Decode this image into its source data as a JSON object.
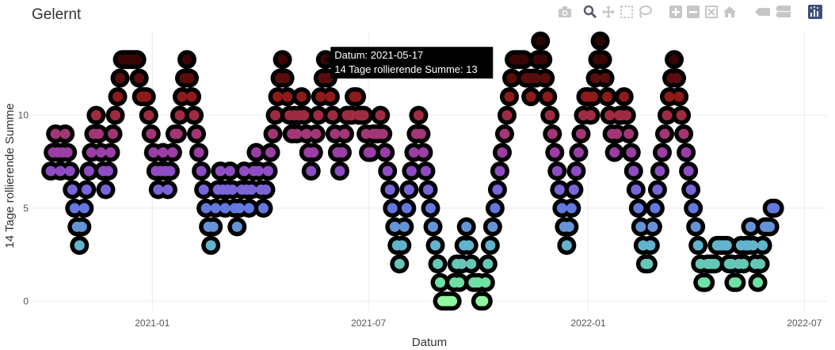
{
  "chart_data": {
    "type": "scatter",
    "title": "Gelernt",
    "xlabel": "Datum",
    "ylabel": "14 Tage rollierende Summe",
    "xlim": [
      "2020-09-22",
      "2022-07-20"
    ],
    "ylim": [
      -0.5,
      14.5
    ],
    "x_ticks": [
      {
        "label": "2021-01",
        "date": "2021-01-01"
      },
      {
        "label": "2021-07",
        "date": "2021-07-01"
      },
      {
        "label": "2022-01",
        "date": "2022-01-01"
      },
      {
        "label": "2022-07",
        "date": "2022-07-01"
      }
    ],
    "y_ticks": [
      0,
      5,
      10
    ],
    "grid": true,
    "start_date": "2020-10-08",
    "y_values": [
      7,
      8,
      9,
      8,
      7,
      8,
      9,
      8,
      7,
      6,
      5,
      4,
      3,
      4,
      5,
      6,
      7,
      8,
      9,
      10,
      9,
      8,
      7,
      6,
      7,
      8,
      9,
      10,
      11,
      12,
      13,
      13,
      13,
      13,
      13,
      13,
      13,
      12,
      11,
      11,
      11,
      10,
      9,
      8,
      7,
      6,
      7,
      8,
      7,
      6,
      7,
      8,
      9,
      9,
      10,
      11,
      12,
      13,
      12,
      11,
      10,
      9,
      8,
      7,
      6,
      5,
      4,
      3,
      4,
      5,
      6,
      7,
      6,
      5,
      6,
      7,
      6,
      5,
      4,
      5,
      6,
      7,
      6,
      5,
      6,
      7,
      8,
      7,
      6,
      5,
      6,
      7,
      8,
      9,
      10,
      11,
      12,
      13,
      12,
      11,
      10,
      9,
      10,
      9,
      10,
      11,
      10,
      9,
      8,
      7,
      8,
      9,
      10,
      11,
      12,
      13,
      12,
      11,
      10,
      9,
      8,
      7,
      8,
      9,
      10,
      10,
      10,
      11,
      11,
      10,
      10,
      10,
      9,
      8,
      8,
      9,
      9,
      9,
      10,
      9,
      8,
      7,
      6,
      5,
      4,
      3,
      2,
      3,
      4,
      5,
      6,
      7,
      8,
      9,
      10,
      9,
      8,
      7,
      6,
      5,
      4,
      3,
      2,
      1,
      0,
      0,
      0,
      0,
      0,
      1,
      2,
      1,
      2,
      3,
      4,
      3,
      2,
      1,
      1,
      1,
      0,
      0,
      1,
      2,
      3,
      4,
      5,
      6,
      7,
      8,
      9,
      10,
      11,
      12,
      13,
      13,
      13,
      13,
      13,
      12,
      12,
      11,
      12,
      12,
      13,
      14,
      13,
      12,
      11,
      10,
      9,
      8,
      7,
      6,
      5,
      4,
      3,
      4,
      5,
      6,
      7,
      8,
      9,
      10,
      11,
      11,
      10,
      11,
      12,
      13,
      14,
      13,
      12,
      11,
      10,
      9,
      8,
      9,
      10,
      10,
      11,
      10,
      9,
      8,
      7,
      6,
      5,
      4,
      3,
      2,
      2,
      3,
      4,
      5,
      6,
      7,
      8,
      9,
      10,
      11,
      12,
      13,
      12,
      11,
      10,
      9,
      8,
      7,
      6,
      5,
      4,
      3,
      2,
      1,
      1,
      2,
      2,
      2,
      2,
      3,
      3,
      3,
      3,
      3,
      2,
      2,
      1,
      1,
      2,
      3,
      2,
      3,
      3,
      4,
      3,
      2,
      1,
      2,
      3,
      4,
      4,
      4,
      5,
      5
    ],
    "hover": {
      "date": "2021-05-17",
      "value": 13,
      "label_date": "Datum: 2021-05-17",
      "label_value": "14 Tage rollierende Summe: 13"
    },
    "marker_colors": [
      "#8ef7a0",
      "#6ee0a5",
      "#65c8b6",
      "#62b3cb",
      "#6493d8",
      "#6279df",
      "#7a64d6",
      "#8e4cc4",
      "#9b3ea5",
      "#a33677",
      "#a02b41",
      "#8e1a1a",
      "#5a0d0d",
      "#3a0505",
      "#2a0303"
    ],
    "marker_outline_color": "#000000"
  },
  "modebar": {
    "icons": [
      "camera-icon",
      "zoom-icon",
      "pan-icon",
      "box-select-icon",
      "lasso-select-icon",
      "zoom-in-icon",
      "zoom-out-icon",
      "autoscale-icon",
      "reset-axes-icon",
      "hover-closest-icon",
      "hover-compare-icon",
      "plotly-logo-icon"
    ]
  }
}
